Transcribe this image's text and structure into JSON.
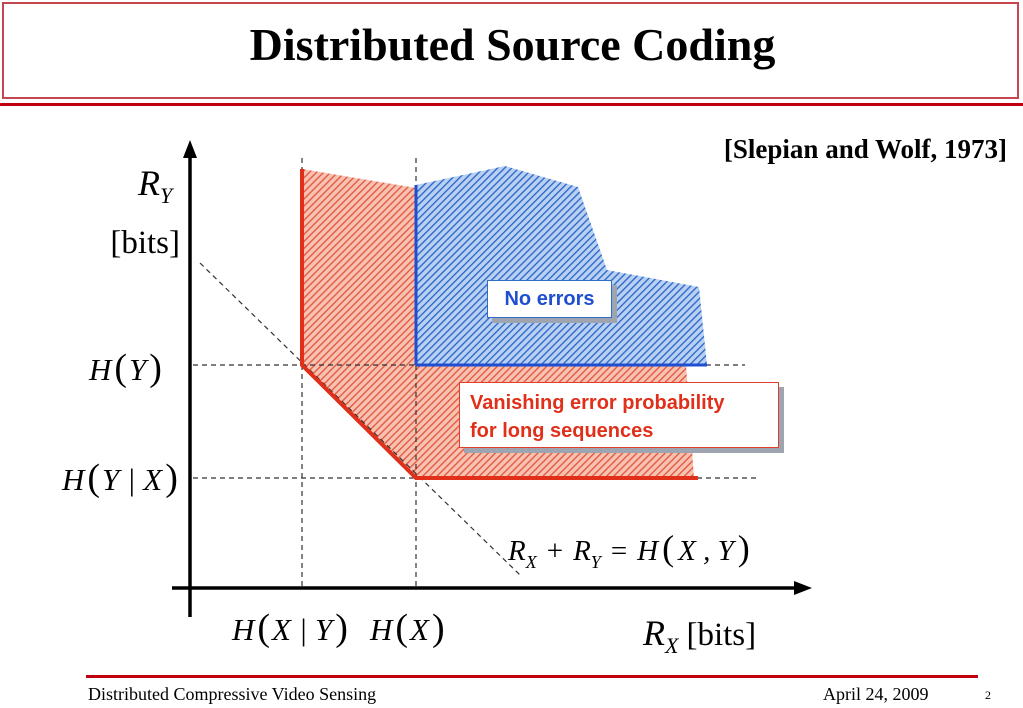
{
  "slide": {
    "title": "Distributed Source Coding",
    "citation": "[Slepian and Wolf, 1973]"
  },
  "diagram": {
    "y_axis_symbol": "R",
    "y_axis_subscript": "Y",
    "y_axis_unit": "[bits]",
    "x_axis_symbol": "R",
    "x_axis_subscript": "X",
    "x_axis_unit": "[bits]",
    "y_ticks": [
      {
        "id": "hy",
        "H": "H",
        "lp": "(",
        "body": "Y",
        "rp": ")"
      },
      {
        "id": "hyx",
        "H": "H",
        "lp": "(",
        "body": "Y | X",
        "rp": ")"
      }
    ],
    "x_ticks": [
      {
        "id": "hxy",
        "H": "H",
        "lp": "(",
        "body": "X | Y",
        "rp": ")"
      },
      {
        "id": "hx",
        "H": "H",
        "lp": "(",
        "body": "X",
        "rp": ")"
      }
    ],
    "equation": {
      "r1": "R",
      "s1": "X",
      "plus": "+",
      "r2": "R",
      "s2": "Y",
      "eq": "=",
      "H": "H",
      "lp": "(",
      "body": "X , Y",
      "rp": ")"
    },
    "callout_no_errors": "No errors",
    "callout_vanishing_line1": "Vanishing error probability",
    "callout_vanishing_line2": "for long sequences",
    "colors": {
      "blue_region": "#2563c8",
      "red_region": "#e2533a",
      "boundary": "#e0301a",
      "blue_edge": "#1f4fd0"
    }
  },
  "footer": {
    "left": "Distributed Compressive Video Sensing",
    "date": "April 24, 2009",
    "page": "2"
  }
}
